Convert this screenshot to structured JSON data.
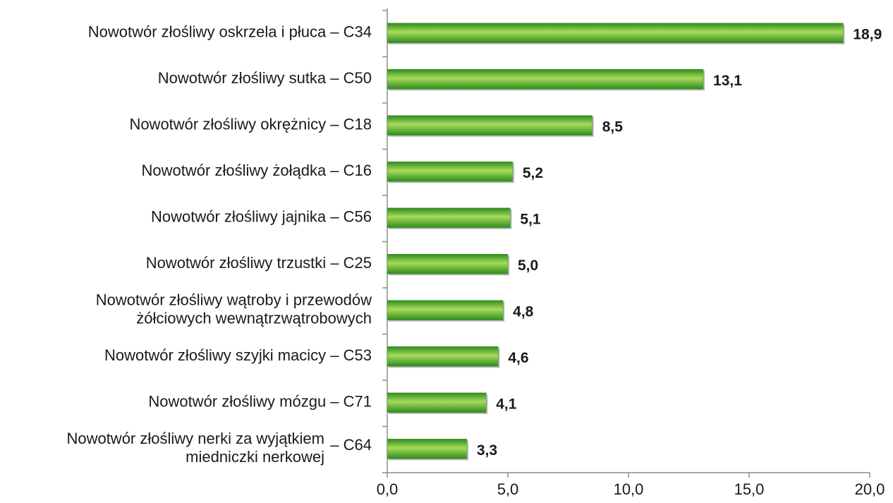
{
  "chart_data": {
    "type": "bar",
    "orientation": "horizontal",
    "categories": [
      "Nowotwór złośliwy oskrzela i płuca – C34",
      "Nowotwór złośliwy sutka – C50",
      "Nowotwór złośliwy okrężnicy – C18",
      "Nowotwór złośliwy żołądka – C16",
      "Nowotwór złośliwy jajnika – C56",
      "Nowotwór złośliwy trzustki – C25",
      [
        "Nowotwór złośliwy wątroby i przewodów",
        "żółciowych wewnątrzwątrobowych"
      ],
      "Nowotwór złośliwy szyjki macicy – C53",
      "Nowotwór złośliwy mózgu – C71",
      [
        "Nowotwór złośliwy nerki za wyjątkiem",
        "miedniczki nerkowej",
        "– C64"
      ]
    ],
    "values": [
      18.9,
      13.1,
      8.5,
      5.2,
      5.1,
      5.0,
      4.8,
      4.6,
      4.1,
      3.3
    ],
    "value_labels": [
      "18,9",
      "13,1",
      "8,5",
      "5,2",
      "5,1",
      "5,0",
      "4,8",
      "4,6",
      "4,1",
      "3,3"
    ],
    "color": "#3fa535",
    "xlim": [
      0,
      20
    ],
    "xticks": [
      {
        "value": 0,
        "label": "0,0"
      },
      {
        "value": 5,
        "label": "5,0"
      },
      {
        "value": 10,
        "label": "10,0"
      },
      {
        "value": 15,
        "label": "15,0"
      },
      {
        "value": 20,
        "label": "20,0"
      }
    ],
    "grid": false
  }
}
